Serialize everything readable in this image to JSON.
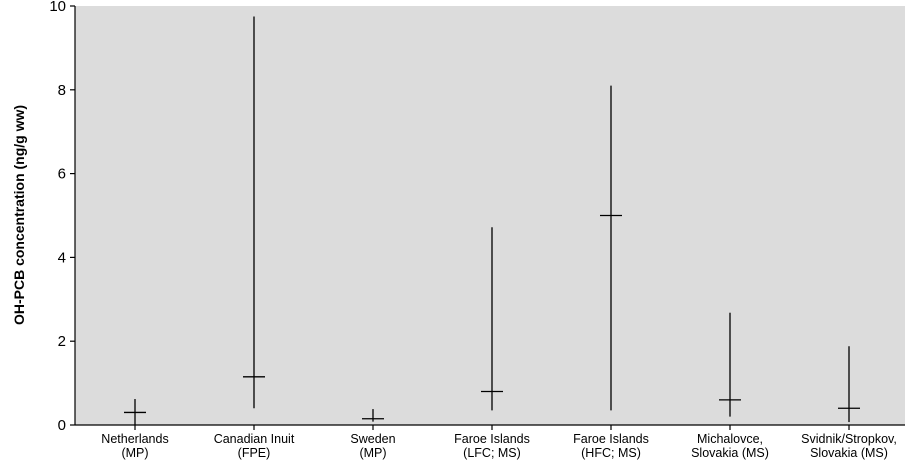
{
  "chart_data": {
    "type": "range",
    "title": "",
    "xlabel": "",
    "ylabel": "OH-PCB concentration (ng/g ww)",
    "ylim": [
      0,
      10
    ],
    "yticks": [
      "0",
      "2",
      "4",
      "6",
      "8",
      "10"
    ],
    "grid": false,
    "categories": [
      {
        "line1": "Netherlands",
        "line2": "(MP)"
      },
      {
        "line1": "Canadian Inuit",
        "line2": "(FPE)"
      },
      {
        "line1": "Sweden",
        "line2": "(MP)"
      },
      {
        "line1": "Faroe Islands",
        "line2": "(LFC; MS)"
      },
      {
        "line1": "Faroe Islands",
        "line2": "(HFC; MS)"
      },
      {
        "line1": "Michalovce,",
        "line2": "Slovakia (MS)"
      },
      {
        "line1": "Svidnik/Stropkov,",
        "line2": "Slovakia (MS)"
      }
    ],
    "series": [
      {
        "median": [
          0.3,
          1.15,
          0.15,
          0.8,
          5.0,
          0.6,
          0.4
        ],
        "min": [
          0.0,
          0.4,
          0.08,
          0.35,
          0.35,
          0.2,
          0.07
        ],
        "max": [
          0.62,
          9.75,
          0.38,
          4.72,
          8.1,
          2.68,
          1.88
        ]
      }
    ],
    "colors": {
      "background": "#dcdcdc",
      "marks": "#000000"
    }
  }
}
